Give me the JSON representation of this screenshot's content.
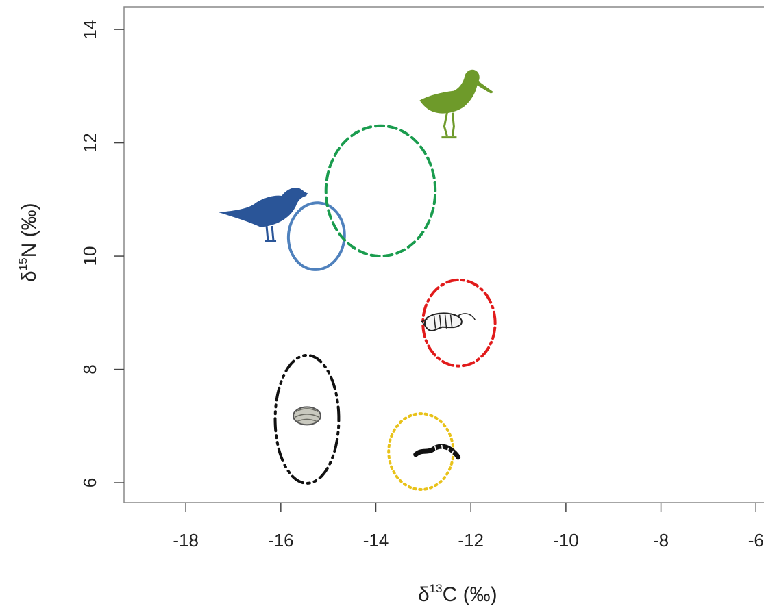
{
  "chart_data": {
    "type": "scatter",
    "title": "",
    "xlabel": "δ13C (‰)",
    "ylabel": "δ15N (‰)",
    "xlabel_parts": {
      "symbol": "δ",
      "sup": "13",
      "rest": "C (‰)"
    },
    "ylabel_parts": {
      "symbol": "δ",
      "sup": "15",
      "rest": "N (‰)"
    },
    "xlim": [
      -19.3,
      -5.6
    ],
    "ylim": [
      5.65,
      14.4
    ],
    "xticks": [
      -18,
      -16,
      -14,
      -12,
      -10,
      -8,
      -6
    ],
    "yticks": [
      6,
      8,
      10,
      12,
      14
    ],
    "grid": false,
    "series": [
      {
        "icon": "bird-blue-icon",
        "color": "#4f81bd",
        "line": "solid",
        "ellipse": {
          "cx": -15.25,
          "cy": 10.35,
          "rx": 0.6,
          "ry": 0.58,
          "angle_deg": 45
        }
      },
      {
        "icon": "shorebird-green-icon",
        "color": "#1a9c4e",
        "line": "dashed",
        "ellipse": {
          "cx": -13.9,
          "cy": 11.15,
          "rx": 1.15,
          "ry": 1.15,
          "angle_deg": 0
        }
      },
      {
        "icon": "shrimp-icon",
        "color": "#e11b1b",
        "line": "dashdot",
        "ellipse": {
          "cx": -12.25,
          "cy": 8.82,
          "rx": 0.76,
          "ry": 0.76,
          "angle_deg": 0
        }
      },
      {
        "icon": "clam-icon",
        "color": "#111111",
        "line": "dashdotdot",
        "ellipse": {
          "cx": -15.45,
          "cy": 7.12,
          "rx": 0.67,
          "ry": 1.13,
          "angle_deg": 0
        }
      },
      {
        "icon": "worm-icon",
        "color": "#e8c21a",
        "line": "dotted",
        "ellipse": {
          "cx": -13.05,
          "cy": 6.55,
          "rx": 0.68,
          "ry": 0.67,
          "angle_deg": 0
        }
      }
    ]
  },
  "icons": {
    "bird_blue": {
      "name": "bird-blue-icon",
      "color": "#2a5598",
      "x": -16.3,
      "y": 10.75
    },
    "shorebird_green": {
      "name": "shorebird-green-icon",
      "color": "#6e9a2a",
      "x": -12.3,
      "y": 12.7
    },
    "shrimp": {
      "name": "shrimp-icon",
      "color": "#222222",
      "x": -12.6,
      "y": 8.82
    },
    "clam": {
      "name": "clam-icon",
      "color": "#8a8a80",
      "x": -15.45,
      "y": 7.18
    },
    "worm": {
      "name": "worm-icon",
      "color": "#111111",
      "x": -12.7,
      "y": 6.57
    }
  }
}
